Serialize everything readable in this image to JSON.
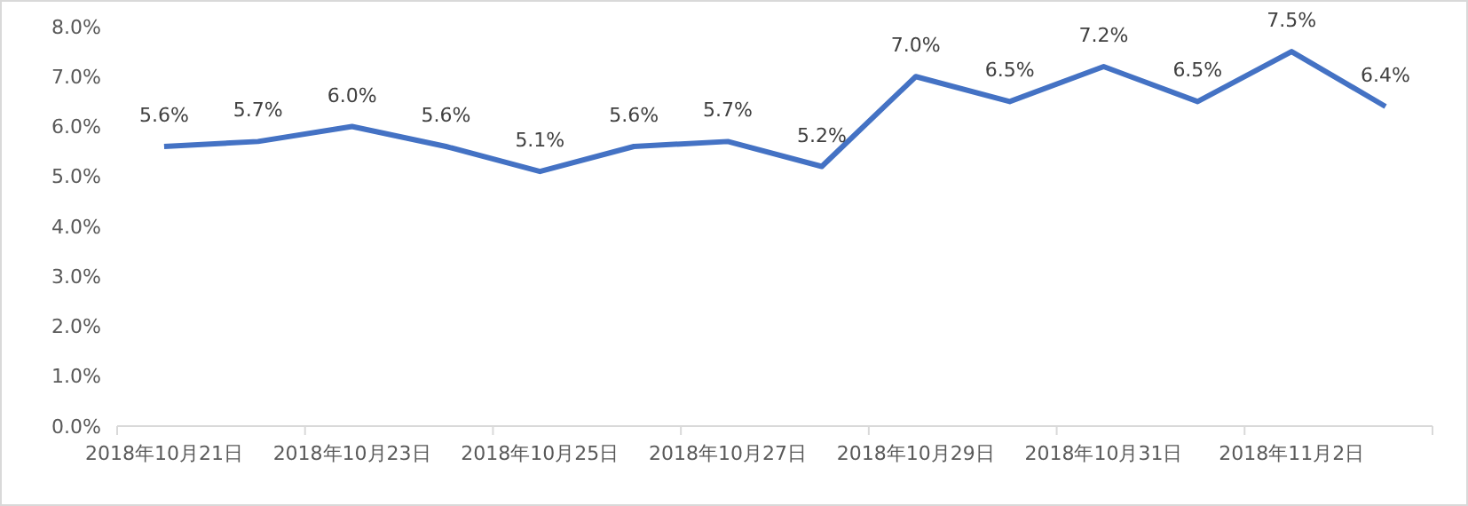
{
  "chart_data": {
    "type": "line",
    "categories": [
      "2018年10月21日",
      null,
      "2018年10月23日",
      null,
      "2018年10月25日",
      null,
      "2018年10月27日",
      null,
      "2018年10月29日",
      null,
      "2018年10月31日",
      null,
      "2018年11月2日",
      null
    ],
    "series": [
      {
        "color": "#4472c4",
        "values": [
          5.6,
          5.7,
          6.0,
          5.6,
          5.1,
          5.6,
          5.7,
          5.2,
          7.0,
          6.5,
          7.2,
          6.5,
          7.5,
          6.4
        ],
        "value_labels": [
          "5.6%",
          "5.7%",
          "6.0%",
          "5.6%",
          "5.1%",
          "5.6%",
          "5.7%",
          "5.2%",
          "7.0%",
          "6.5%",
          "7.2%",
          "6.5%",
          "7.5%",
          "6.4%"
        ]
      }
    ],
    "ylim": [
      0,
      8
    ],
    "yticks": [
      {
        "value": 0,
        "label": "0.0%"
      },
      {
        "value": 1,
        "label": "1.0%"
      },
      {
        "value": 2,
        "label": "2.0%"
      },
      {
        "value": 3,
        "label": "3.0%"
      },
      {
        "value": 4,
        "label": "4.0%"
      },
      {
        "value": 5,
        "label": "5.0%"
      },
      {
        "value": 6,
        "label": "6.0%"
      },
      {
        "value": 7,
        "label": "7.0%"
      },
      {
        "value": 8,
        "label": "8.0%"
      }
    ],
    "grid": false,
    "marker": "none",
    "line_style": "solid"
  }
}
